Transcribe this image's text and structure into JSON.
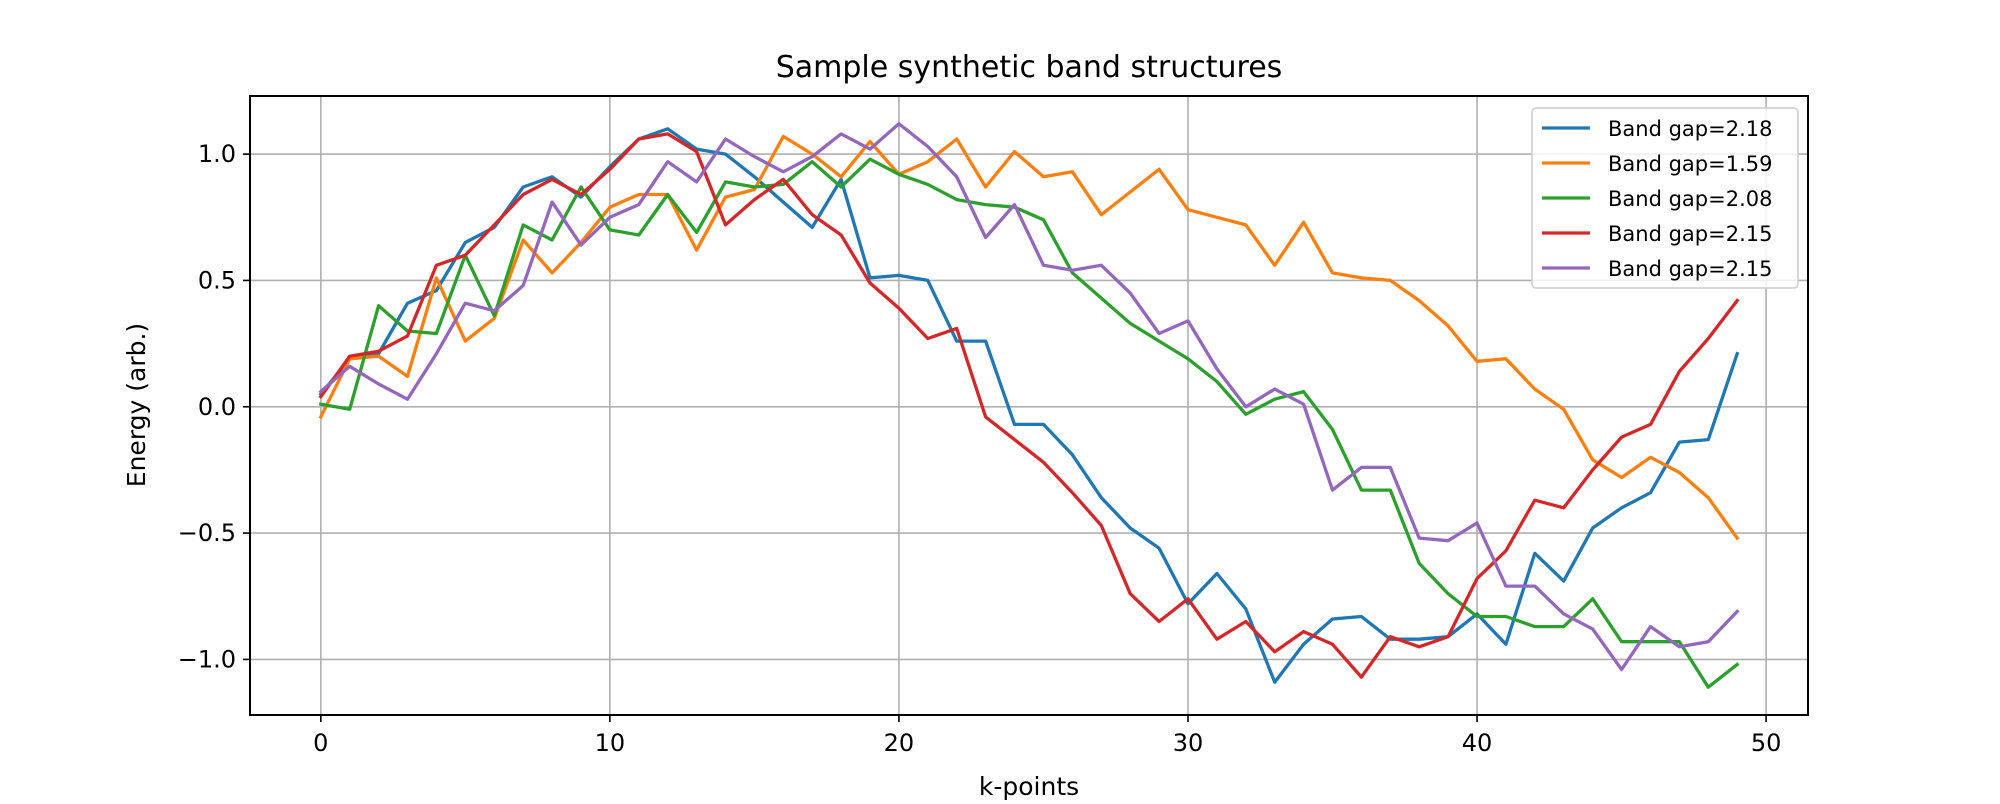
{
  "chart_data": {
    "type": "line",
    "title": "Sample synthetic band structures",
    "xlabel": "k-points",
    "ylabel": "Energy (arb.)",
    "xlim": [
      -2.45,
      51.45
    ],
    "ylim": [
      -1.22,
      1.23
    ],
    "xticks": [
      0,
      10,
      20,
      30,
      40,
      50
    ],
    "yticks": [
      -1.0,
      -0.5,
      0.0,
      0.5,
      1.0
    ],
    "xtick_labels": [
      "0",
      "10",
      "20",
      "30",
      "40",
      "50"
    ],
    "ytick_labels": [
      "−1.0",
      "−0.5",
      "0.0",
      "0.5",
      "1.0"
    ],
    "grid": true,
    "legend_position": "top-right",
    "x": [
      0,
      1,
      2,
      3,
      4,
      5,
      6,
      7,
      8,
      9,
      10,
      11,
      12,
      13,
      14,
      15,
      16,
      17,
      18,
      19,
      20,
      21,
      22,
      23,
      24,
      25,
      26,
      27,
      28,
      29,
      30,
      31,
      32,
      33,
      34,
      35,
      36,
      37,
      38,
      39,
      40,
      41,
      42,
      43,
      44,
      45,
      46,
      47,
      48,
      49
    ],
    "series": [
      {
        "name": "Band gap=2.18",
        "color": "#1f77b4",
        "values": [
          0.05,
          0.19,
          0.21,
          0.41,
          0.46,
          0.65,
          0.71,
          0.87,
          0.91,
          0.83,
          0.95,
          1.06,
          1.1,
          1.02,
          1.0,
          0.91,
          0.81,
          0.71,
          0.9,
          0.51,
          0.52,
          0.5,
          0.26,
          0.26,
          -0.07,
          -0.07,
          -0.19,
          -0.36,
          -0.48,
          -0.56,
          -0.78,
          -0.66,
          -0.8,
          -1.09,
          -0.94,
          -0.84,
          -0.83,
          -0.92,
          -0.92,
          -0.91,
          -0.82,
          -0.94,
          -0.58,
          -0.69,
          -0.48,
          -0.4,
          -0.34,
          -0.14,
          -0.13,
          0.21
        ]
      },
      {
        "name": "Band gap=1.59",
        "color": "#ff7f0e",
        "values": [
          -0.04,
          0.19,
          0.2,
          0.12,
          0.51,
          0.26,
          0.35,
          0.66,
          0.53,
          0.65,
          0.79,
          0.84,
          0.84,
          0.62,
          0.83,
          0.86,
          1.07,
          1.0,
          0.91,
          1.05,
          0.92,
          0.97,
          1.06,
          0.87,
          1.01,
          0.91,
          0.93,
          0.76,
          0.85,
          0.94,
          0.78,
          0.75,
          0.72,
          0.56,
          0.73,
          0.53,
          0.51,
          0.5,
          0.42,
          0.32,
          0.18,
          0.19,
          0.07,
          -0.01,
          -0.21,
          -0.28,
          -0.2,
          -0.26,
          -0.36,
          -0.52
        ]
      },
      {
        "name": "Band gap=2.08",
        "color": "#2ca02c",
        "values": [
          0.01,
          -0.01,
          0.4,
          0.3,
          0.29,
          0.6,
          0.36,
          0.72,
          0.66,
          0.87,
          0.7,
          0.68,
          0.84,
          0.69,
          0.89,
          0.87,
          0.88,
          0.97,
          0.87,
          0.98,
          0.92,
          0.88,
          0.82,
          0.8,
          0.79,
          0.74,
          0.53,
          0.43,
          0.33,
          0.26,
          0.19,
          0.1,
          -0.03,
          0.03,
          0.06,
          -0.09,
          -0.33,
          -0.33,
          -0.62,
          -0.74,
          -0.83,
          -0.83,
          -0.87,
          -0.87,
          -0.76,
          -0.93,
          -0.93,
          -0.93,
          -1.11,
          -1.02
        ]
      },
      {
        "name": "Band gap=2.15",
        "color": "#d62728",
        "values": [
          0.04,
          0.2,
          0.22,
          0.28,
          0.56,
          0.6,
          0.72,
          0.84,
          0.9,
          0.84,
          0.94,
          1.06,
          1.08,
          1.01,
          0.72,
          0.82,
          0.9,
          0.76,
          0.68,
          0.49,
          0.39,
          0.27,
          0.31,
          -0.04,
          -0.13,
          -0.22,
          -0.34,
          -0.47,
          -0.74,
          -0.85,
          -0.76,
          -0.92,
          -0.85,
          -0.97,
          -0.89,
          -0.94,
          -1.07,
          -0.91,
          -0.95,
          -0.91,
          -0.68,
          -0.57,
          -0.37,
          -0.4,
          -0.25,
          -0.12,
          -0.07,
          0.14,
          0.27,
          0.42
        ]
      },
      {
        "name": "Band gap=2.15",
        "color": "#9467bd",
        "values": [
          0.06,
          0.16,
          0.09,
          0.03,
          0.21,
          0.41,
          0.38,
          0.48,
          0.81,
          0.64,
          0.75,
          0.8,
          0.97,
          0.89,
          1.06,
          0.99,
          0.93,
          0.99,
          1.08,
          1.02,
          1.12,
          1.03,
          0.91,
          0.67,
          0.8,
          0.56,
          0.54,
          0.56,
          0.45,
          0.29,
          0.34,
          0.15,
          0.0,
          0.07,
          0.01,
          -0.33,
          -0.24,
          -0.24,
          -0.52,
          -0.53,
          -0.46,
          -0.71,
          -0.71,
          -0.82,
          -0.88,
          -1.04,
          -0.87,
          -0.95,
          -0.93,
          -0.81
        ]
      }
    ]
  }
}
